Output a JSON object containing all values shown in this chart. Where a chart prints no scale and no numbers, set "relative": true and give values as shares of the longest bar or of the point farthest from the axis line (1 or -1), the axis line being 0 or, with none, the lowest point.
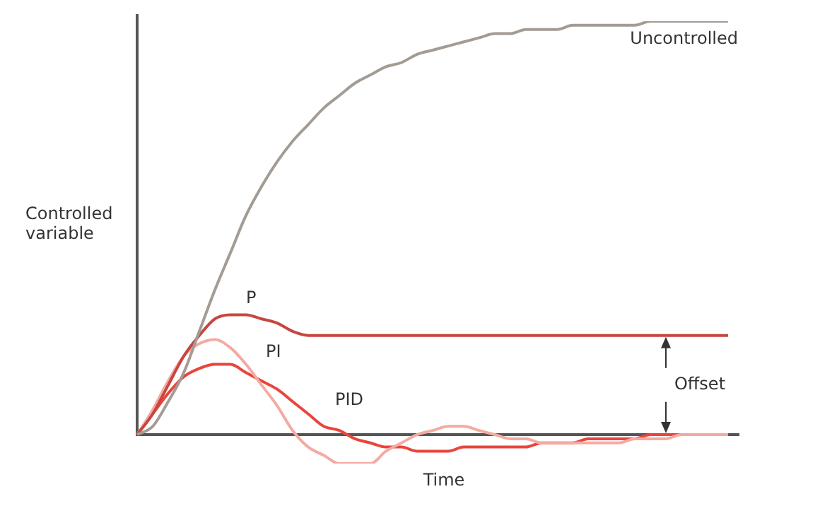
{
  "chart_data": {
    "type": "line",
    "relative": true,
    "ylabel": "Controlled\nvariable",
    "xlabel": "Time",
    "legend": false,
    "marker": "none",
    "line_style": "solid",
    "categories": [
      null,
      null,
      null,
      null,
      null,
      null,
      null,
      null,
      null,
      null,
      null,
      null,
      null,
      null,
      null,
      null,
      null,
      null,
      null,
      null,
      null,
      null,
      null,
      null,
      null,
      null,
      null,
      null,
      null,
      null,
      null,
      null,
      null,
      null,
      null,
      null,
      null,
      null,
      null
    ],
    "series": [
      {
        "name": "Uncontrolled",
        "color": "#a39c94",
        "values": [
          0,
          0.02,
          0.08,
          0.15,
          0.25,
          0.35,
          0.44,
          0.53,
          0.6,
          0.66,
          0.71,
          0.75,
          0.79,
          0.82,
          0.85,
          0.87,
          0.89,
          0.9,
          0.92,
          0.93,
          0.94,
          0.95,
          0.96,
          0.97,
          0.97,
          0.98,
          0.98,
          0.98,
          0.99,
          0.99,
          0.99,
          0.99,
          0.99,
          1,
          1,
          1,
          1,
          1,
          1
        ]
      },
      {
        "name": "P",
        "color": "#c8463f",
        "values": [
          0,
          0.05,
          0.12,
          0.19,
          0.24,
          0.28,
          0.29,
          0.29,
          0.28,
          0.27,
          0.25,
          0.24,
          0.24,
          0.24,
          0.24,
          0.24,
          0.24,
          0.24,
          0.24,
          0.24,
          0.24,
          0.24,
          0.24,
          0.24,
          0.24,
          0.24,
          0.24,
          0.24,
          0.24,
          0.24,
          0.24,
          0.24,
          0.24,
          0.24,
          0.24,
          0.24,
          0.24,
          0.24,
          0.24
        ]
      },
      {
        "name": "PI",
        "color": "#f4aaa2",
        "values": [
          0,
          0.06,
          0.13,
          0.19,
          0.22,
          0.23,
          0.21,
          0.17,
          0.12,
          0.07,
          0.01,
          -0.03,
          -0.05,
          -0.07,
          -0.07,
          -0.07,
          -0.04,
          -0.02,
          0,
          0.01,
          0.02,
          0.02,
          0.01,
          0,
          -0.01,
          -0.01,
          -0.02,
          -0.02,
          -0.02,
          -0.02,
          -0.02,
          -0.02,
          -0.01,
          -0.01,
          -0.01,
          0,
          0,
          0,
          0
        ]
      },
      {
        "name": "PID",
        "color": "#e8453c",
        "values": [
          0,
          0.05,
          0.1,
          0.14,
          0.16,
          0.17,
          0.17,
          0.15,
          0.13,
          0.11,
          0.08,
          0.05,
          0.02,
          0.01,
          -0.01,
          -0.02,
          -0.03,
          -0.03,
          -0.04,
          -0.04,
          -0.04,
          -0.03,
          -0.03,
          -0.03,
          -0.03,
          -0.03,
          -0.02,
          -0.02,
          -0.02,
          -0.01,
          -0.01,
          -0.01,
          -0.01,
          0,
          0,
          0,
          0,
          0,
          0
        ]
      }
    ],
    "annotations": [
      "Offset"
    ]
  }
}
